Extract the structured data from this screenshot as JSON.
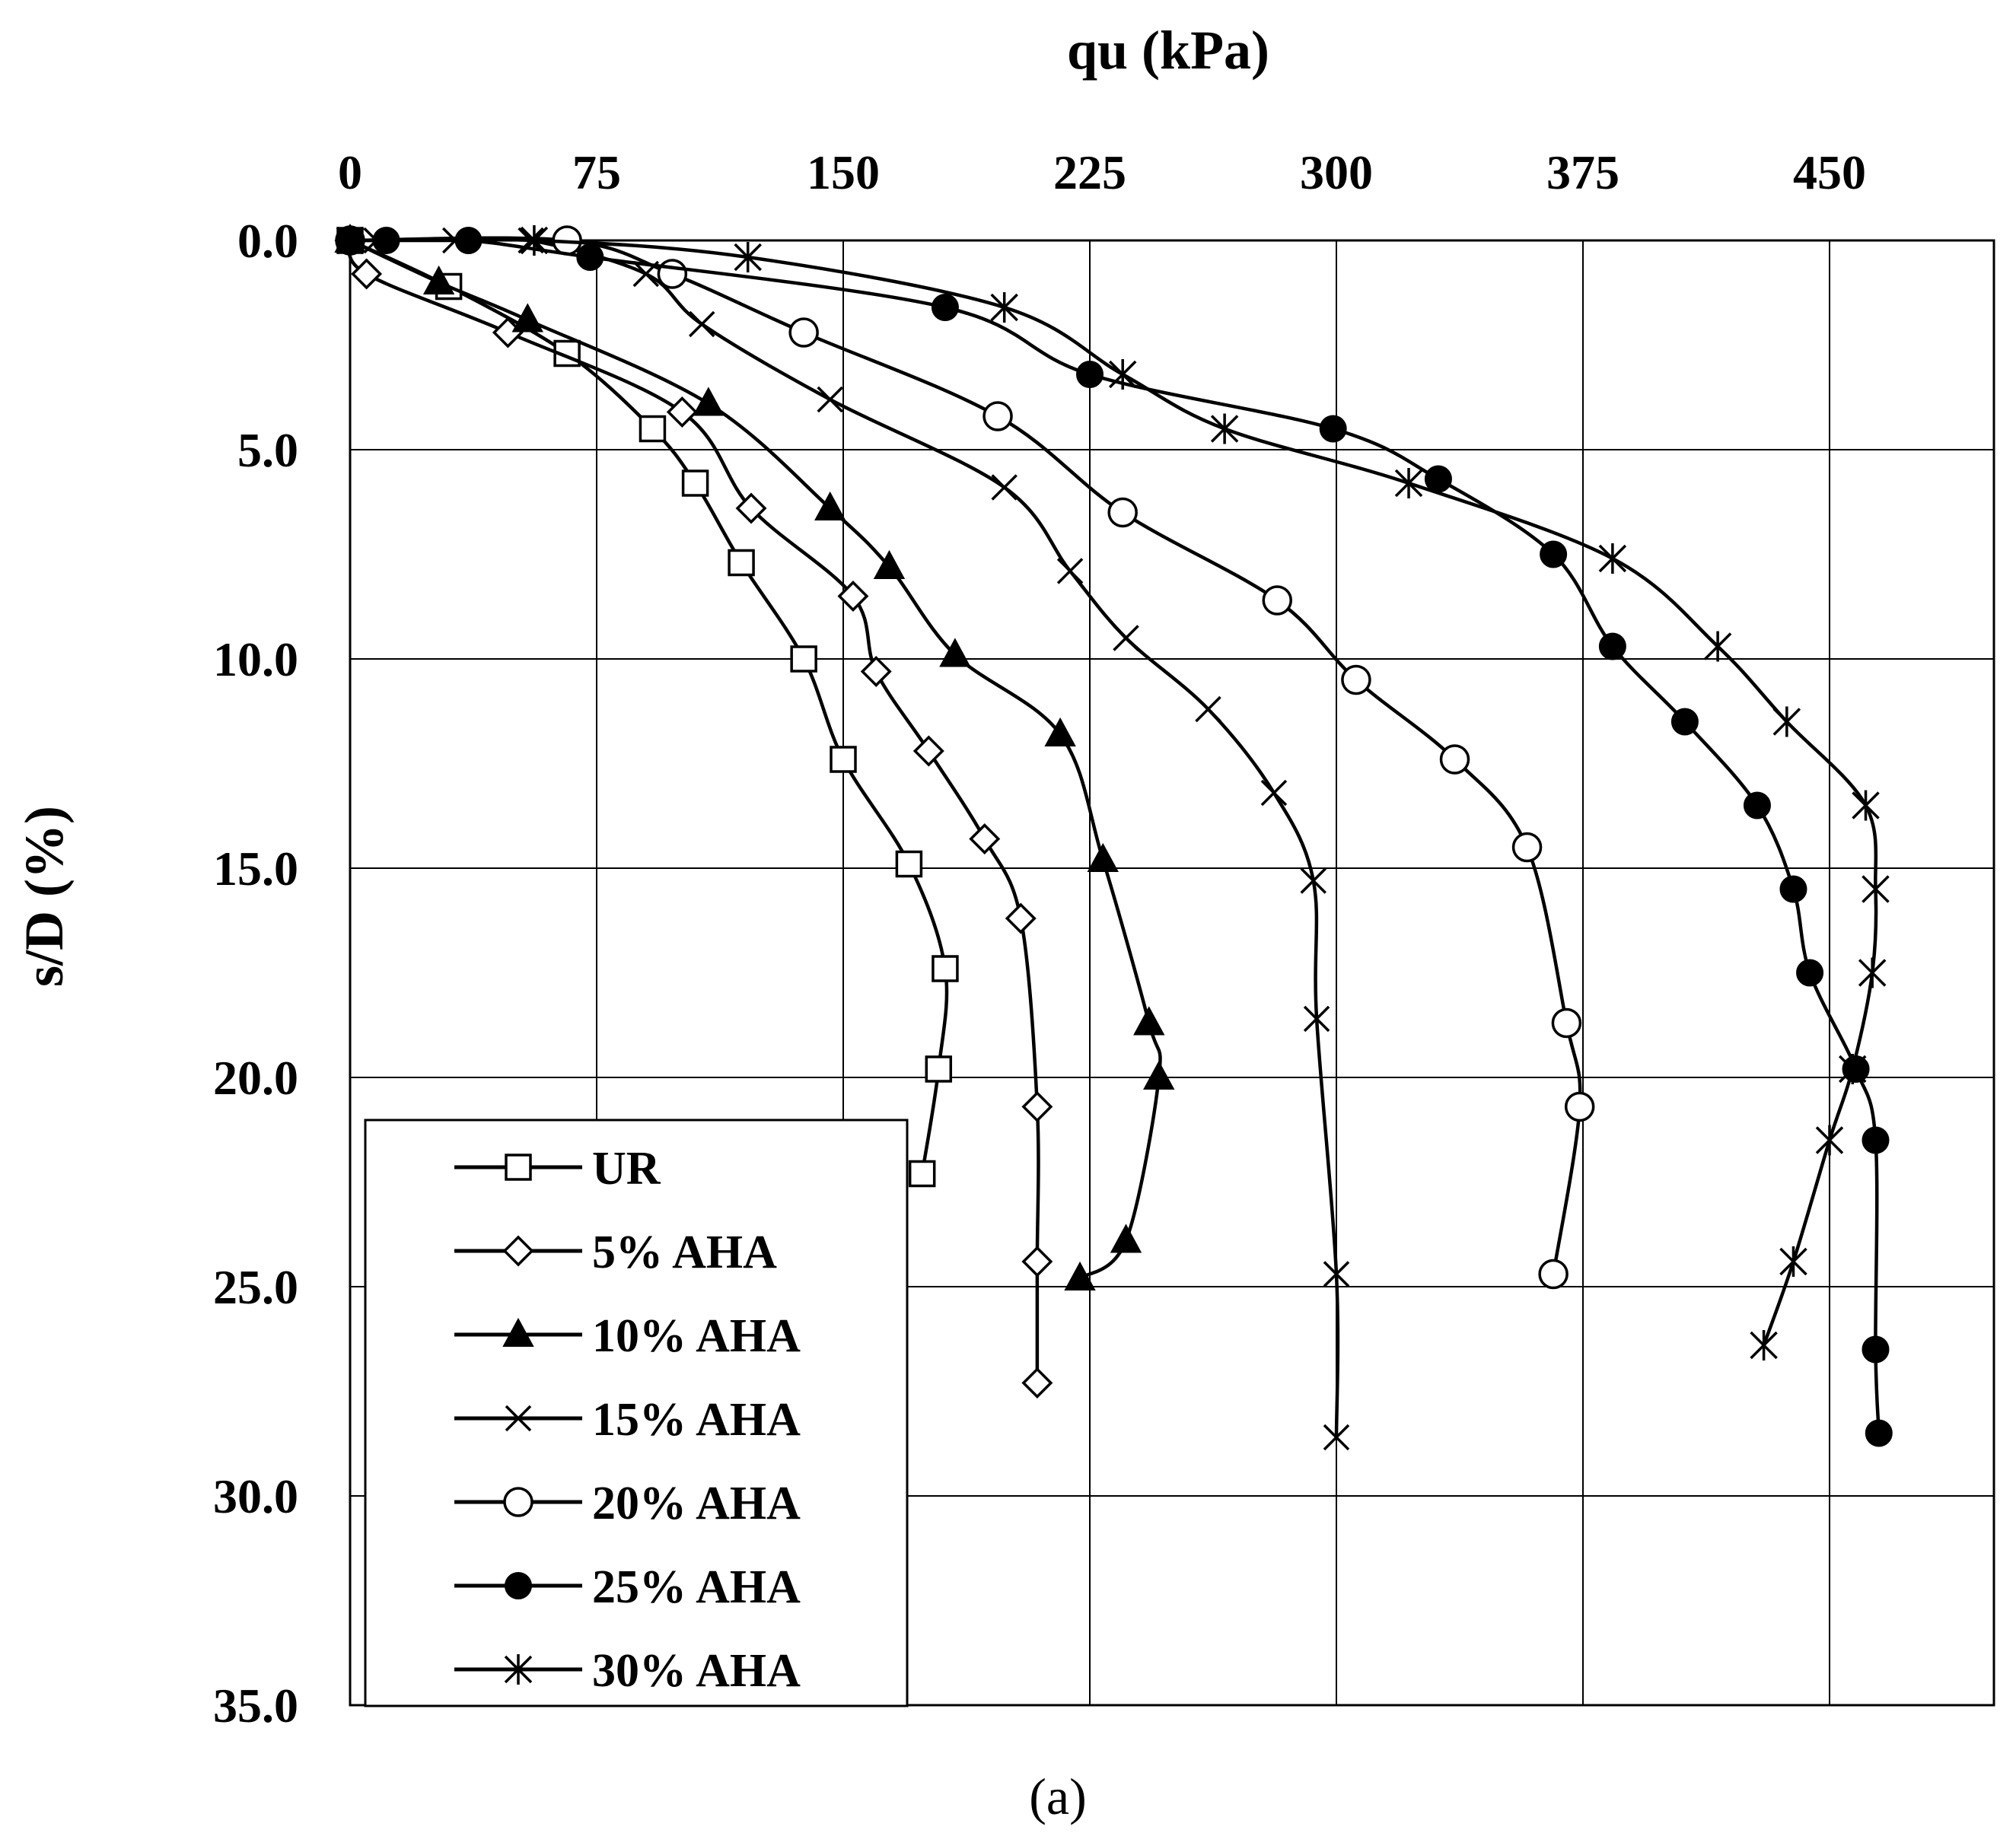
{
  "chart_data": {
    "type": "line",
    "title": "",
    "xlabel": "qu (kPa)",
    "ylabel": "s/D (%)",
    "caption": "(a)",
    "xlim": [
      0,
      500
    ],
    "ylim": [
      0,
      35
    ],
    "y_inverted": true,
    "x_axis_position": "top",
    "x_ticks": [
      0,
      75,
      150,
      225,
      300,
      375,
      450
    ],
    "x_tick_labels": [
      "0",
      "75",
      "150",
      "225",
      "300",
      "375",
      "450"
    ],
    "y_ticks": [
      0,
      5,
      10,
      15,
      20,
      25,
      30,
      35
    ],
    "y_tick_labels": [
      "0.0",
      "5.0",
      "10.0",
      "15.0",
      "20.0",
      "25.0",
      "30.0",
      "35.0"
    ],
    "grid": true,
    "legend_position": "bottom-left",
    "series": [
      {
        "name": "UR",
        "marker": "square-open",
        "x": [
          0,
          30,
          66,
          92,
          105,
          119,
          138,
          150,
          170,
          181,
          179,
          174
        ],
        "y": [
          0,
          1.1,
          2.7,
          4.5,
          5.8,
          7.7,
          10.0,
          12.4,
          14.9,
          17.4,
          19.8,
          22.3
        ]
      },
      {
        "name": "5% AHA",
        "marker": "diamond-open",
        "x": [
          0,
          5,
          48,
          101,
          122,
          153,
          160,
          176,
          193,
          204,
          209,
          209,
          209
        ],
        "y": [
          0,
          0.8,
          2.2,
          4.1,
          6.4,
          8.5,
          10.3,
          12.2,
          14.3,
          16.2,
          20.7,
          24.4,
          27.3
        ]
      },
      {
        "name": "10% AHA",
        "marker": "triangle-filled",
        "x": [
          0,
          27,
          54,
          109,
          146,
          164,
          184,
          216,
          229,
          243,
          246,
          236,
          222
        ],
        "y": [
          0,
          1.0,
          1.9,
          3.9,
          6.4,
          7.8,
          9.9,
          11.8,
          14.8,
          18.7,
          20.0,
          23.9,
          24.8
        ]
      },
      {
        "name": "15% AHA",
        "marker": "x",
        "x": [
          0,
          8,
          32,
          55,
          90,
          107,
          146,
          199,
          219,
          236,
          261,
          281,
          293,
          294,
          300,
          300
        ],
        "y": [
          0,
          0,
          0,
          0,
          0.8,
          2.0,
          3.8,
          5.9,
          7.9,
          9.5,
          11.2,
          13.2,
          15.3,
          18.6,
          24.7,
          28.6
        ]
      },
      {
        "name": "20% AHA",
        "marker": "circle-open",
        "x": [
          0,
          66,
          98,
          138,
          197,
          235,
          282,
          306,
          336,
          358,
          370,
          374,
          366
        ],
        "y": [
          0,
          0,
          0.8,
          2.2,
          4.2,
          6.5,
          8.6,
          10.5,
          12.4,
          14.5,
          18.7,
          20.7,
          24.7
        ]
      },
      {
        "name": "25% AHA",
        "marker": "circle-filled",
        "x": [
          0,
          11,
          36,
          73,
          181,
          225,
          299,
          331,
          366,
          384,
          406,
          428,
          439,
          444,
          458,
          464,
          464,
          465
        ],
        "y": [
          0,
          0,
          0,
          0.4,
          1.6,
          3.2,
          4.5,
          5.7,
          7.5,
          9.7,
          11.5,
          13.5,
          15.5,
          17.5,
          19.8,
          21.5,
          26.5,
          28.5
        ]
      },
      {
        "name": "30% AHA",
        "marker": "asterisk",
        "x": [
          0,
          56,
          121,
          199,
          235,
          266,
          322,
          384,
          416,
          437,
          461,
          464,
          463,
          457,
          450,
          439,
          430
        ],
        "y": [
          0,
          0,
          0.4,
          1.6,
          3.2,
          4.5,
          5.8,
          7.6,
          9.7,
          11.5,
          13.5,
          15.5,
          17.5,
          19.8,
          21.5,
          24.4,
          26.4
        ]
      }
    ]
  }
}
